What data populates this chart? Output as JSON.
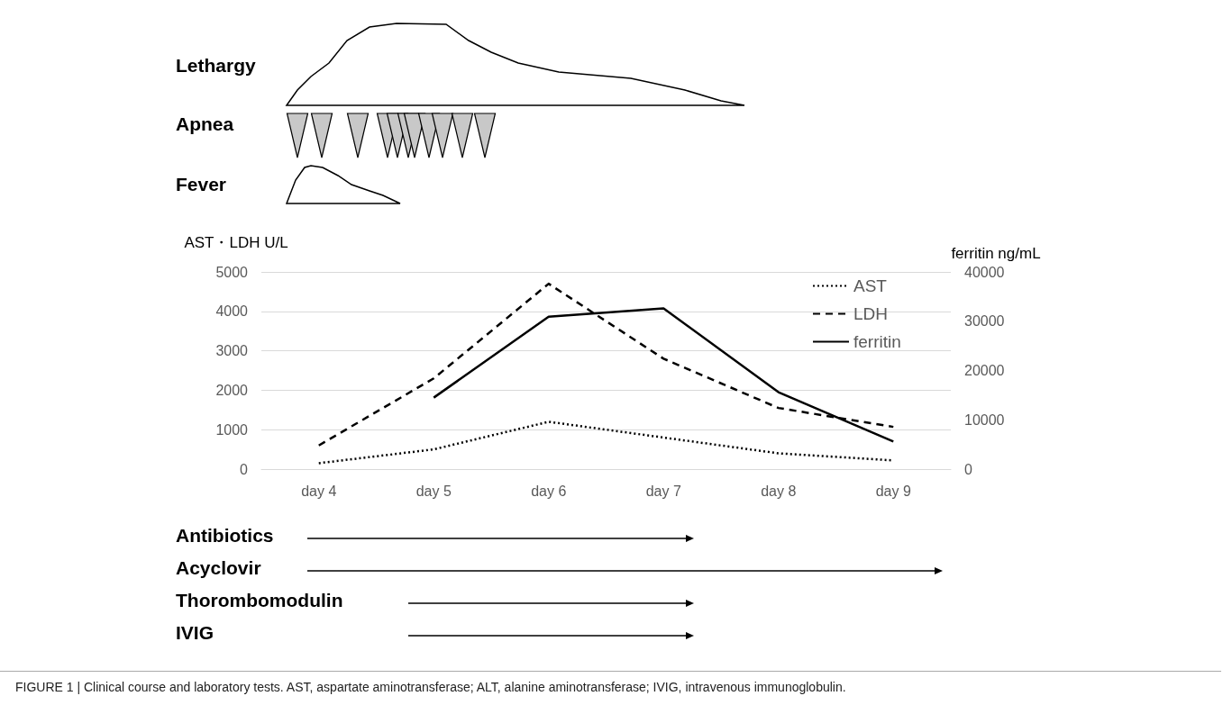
{
  "chart_data": {
    "type": "line",
    "categories": [
      "day 4",
      "day 5",
      "day 6",
      "day 7",
      "day 8",
      "day 9"
    ],
    "series": [
      {
        "name": "AST",
        "color": "#000000",
        "line_style": "dotted",
        "values": [
          150,
          500,
          1200,
          800,
          400,
          220
        ]
      },
      {
        "name": "LDH",
        "color": "#000000",
        "line_style": "dashed",
        "values": [
          600,
          2300,
          4700,
          2800,
          1550,
          1070
        ]
      },
      {
        "name": "ferritin",
        "color": "#000000",
        "line_style": "solid",
        "axis": "y2",
        "values": [
          null,
          14500,
          30900,
          32600,
          15600,
          5600
        ]
      }
    ],
    "ylabel": "AST・LDH U/L",
    "y2label": "ferritin ng/mL",
    "ylim": [
      0,
      5000
    ],
    "yticks": [
      0,
      1000,
      2000,
      3000,
      4000,
      5000
    ],
    "y2lim": [
      0,
      40000
    ],
    "y2ticks": [
      0,
      10000,
      20000,
      30000,
      40000
    ],
    "grid": "y",
    "legend": "top right",
    "marker": "none",
    "annotations": [
      "Lethargy",
      "Apnea",
      "Fever",
      "Antibiotics",
      "Acyclovir",
      "Thorombomodulin",
      "IVIG",
      "FIGURE 1 | Clinical course and laboratory tests. AST, aspartate aminotransferase; ALT, alanine aminotransferase; IVIG, intravenous immunoglobulin."
    ]
  }
}
